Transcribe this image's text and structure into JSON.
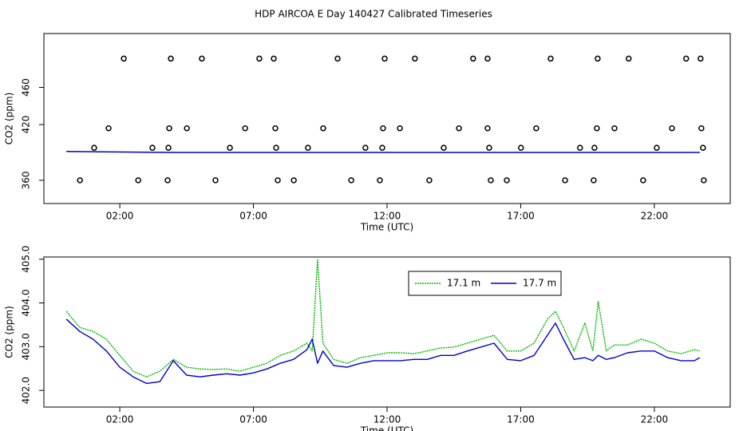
{
  "title": "HDP AIRCOA E  Day 140427  Calibrated Timeseries",
  "chart_data": [
    {
      "type": "scatter",
      "xlabel": "Time (UTC)",
      "ylabel": "CO2 (ppm)",
      "xlim": [
        -0.84,
        24.84
      ],
      "ylim": [
        335,
        518
      ],
      "xticks": [
        {
          "value": 2,
          "label": "02:00"
        },
        {
          "value": 7,
          "label": "07:00"
        },
        {
          "value": 12,
          "label": "12:00"
        },
        {
          "value": 17,
          "label": "17:00"
        },
        {
          "value": 22,
          "label": "22:00"
        }
      ],
      "yticks": [
        360,
        420,
        460
      ],
      "series": [
        {
          "kind": "line",
          "color": "#0000cc",
          "x": [
            0,
            4,
            8,
            12,
            16,
            20,
            23.7
          ],
          "values": [
            391,
            390,
            390,
            390,
            390,
            390,
            390
          ]
        },
        {
          "kind": "points",
          "color": "#000000",
          "x": [
            2.15,
            3.91,
            5.07,
            7.22,
            7.76,
            10.15,
            11.91,
            13.04,
            15.22,
            15.76,
            18.12,
            19.88,
            21.04,
            23.19,
            23.73,
            1.58,
            3.85,
            4.51,
            6.69,
            7.82,
            9.61,
            11.85,
            12.48,
            14.69,
            15.76,
            17.58,
            19.85,
            20.51,
            22.66,
            23.76,
            1.04,
            3.22,
            3.82,
            6.12,
            7.85,
            9.04,
            11.19,
            11.82,
            14.12,
            15.82,
            17.01,
            19.22,
            19.76,
            22.09,
            23.82,
            0.51,
            2.69,
            3.79,
            5.58,
            7.91,
            8.51,
            10.66,
            11.73,
            13.58,
            15.88,
            16.48,
            18.66,
            19.73,
            21.58,
            23.85
          ],
          "values": [
            491,
            491,
            491,
            491,
            491,
            491,
            491,
            491,
            491,
            491,
            491,
            491,
            491,
            491,
            491,
            416,
            416,
            416,
            416,
            416,
            416,
            416,
            416,
            416,
            416,
            416,
            416,
            416,
            416,
            416,
            395,
            395,
            395,
            395,
            395,
            395,
            395,
            395,
            395,
            395,
            395,
            395,
            395,
            395,
            395,
            360,
            360,
            360,
            360,
            360,
            360,
            360,
            360,
            360,
            360,
            360,
            360,
            360,
            360,
            360
          ]
        }
      ]
    },
    {
      "type": "line",
      "xlabel": "Time (UTC)",
      "ylabel": "CO2 (ppm)",
      "xlim": [
        -0.84,
        24.84
      ],
      "ylim": [
        401.62,
        405.05
      ],
      "xticks": [
        {
          "value": 2,
          "label": "02:00"
        },
        {
          "value": 7,
          "label": "07:00"
        },
        {
          "value": 12,
          "label": "12:00"
        },
        {
          "value": 17,
          "label": "17:00"
        },
        {
          "value": 22,
          "label": "22:00"
        }
      ],
      "yticks": [
        {
          "value": 402,
          "label": "402.0"
        },
        {
          "value": 403,
          "label": "403.0"
        },
        {
          "value": 404,
          "label": "404.0"
        },
        {
          "value": 405,
          "label": "405.0"
        }
      ],
      "legend": "top",
      "x": [
        0,
        0.5,
        1,
        1.5,
        2,
        2.5,
        3,
        3.5,
        4,
        4.5,
        5,
        5.5,
        6,
        6.5,
        7,
        7.5,
        8,
        8.5,
        9,
        9.2,
        9.4,
        9.6,
        10,
        10.5,
        11,
        11.5,
        12,
        12.5,
        13,
        13.5,
        14,
        14.5,
        15,
        15.5,
        16,
        16.5,
        17,
        17.5,
        18,
        18.3,
        18.6,
        19,
        19.4,
        19.7,
        19.9,
        20.2,
        20.5,
        21,
        21.5,
        22,
        22.5,
        23,
        23.5,
        23.7
      ],
      "series": [
        {
          "name": "17.1 m",
          "color": "#00bb00",
          "values": [
            403.81,
            403.44,
            403.35,
            403.17,
            402.8,
            402.44,
            402.31,
            402.44,
            402.71,
            402.53,
            402.49,
            402.48,
            402.49,
            402.44,
            402.53,
            402.62,
            402.8,
            402.9,
            403.08,
            402.9,
            405.0,
            403.08,
            402.71,
            402.62,
            402.75,
            402.8,
            402.86,
            402.86,
            402.84,
            402.9,
            402.97,
            402.99,
            403.08,
            403.17,
            403.26,
            402.9,
            402.9,
            403.08,
            403.63,
            403.81,
            403.44,
            402.9,
            403.54,
            402.9,
            404.03,
            402.9,
            403.04,
            403.04,
            403.17,
            403.08,
            402.9,
            402.84,
            402.93,
            402.9
          ]
        },
        {
          "name": "17.7 m",
          "color": "#0000cc",
          "values": [
            403.63,
            403.35,
            403.17,
            402.9,
            402.53,
            402.31,
            402.16,
            402.2,
            402.68,
            402.35,
            402.31,
            402.35,
            402.38,
            402.35,
            402.4,
            402.49,
            402.62,
            402.71,
            402.93,
            403.17,
            402.62,
            402.9,
            402.57,
            402.53,
            402.62,
            402.68,
            402.68,
            402.68,
            402.71,
            402.71,
            402.8,
            402.8,
            402.9,
            402.99,
            403.08,
            402.71,
            402.68,
            402.8,
            403.26,
            403.54,
            403.17,
            402.71,
            402.75,
            402.68,
            402.8,
            402.71,
            402.75,
            402.86,
            402.9,
            402.9,
            402.75,
            402.68,
            402.68,
            402.75
          ]
        }
      ]
    }
  ]
}
